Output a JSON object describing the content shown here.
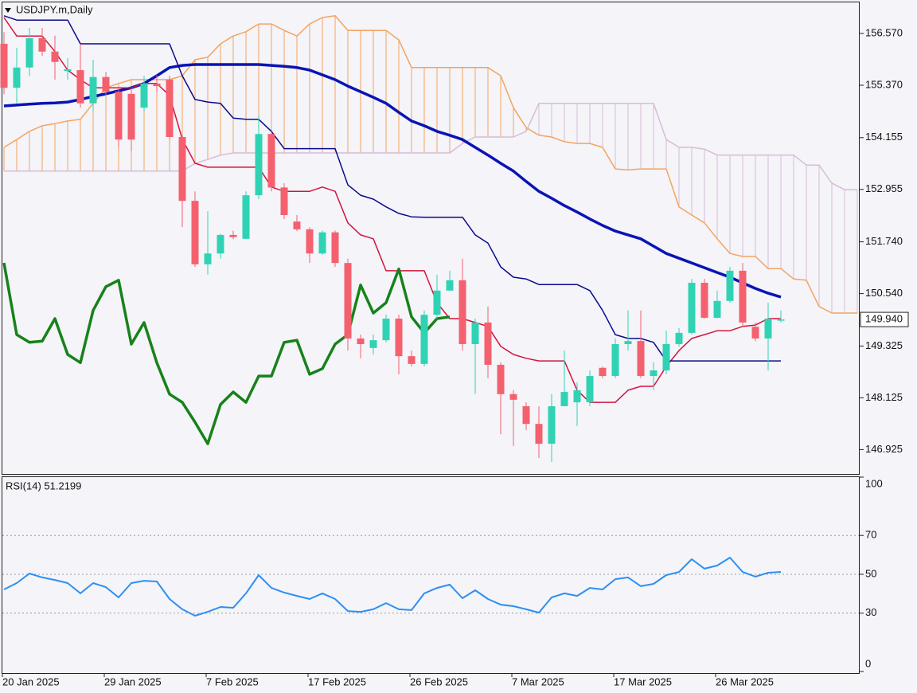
{
  "chart_data": [
    {
      "type": "candlestick",
      "title": "USDJPY.m,Daily",
      "categories": [
        "20 Jan 2025",
        null,
        null,
        null,
        null,
        null,
        null,
        null,
        "29 Jan 2025",
        null,
        null,
        null,
        null,
        null,
        null,
        null,
        "7 Feb 2025",
        null,
        null,
        null,
        null,
        null,
        null,
        null,
        "17 Feb 2025",
        null,
        null,
        null,
        null,
        null,
        null,
        null,
        "26 Feb 2025",
        null,
        null,
        null,
        null,
        null,
        null,
        null,
        "7 Mar 2025",
        null,
        null,
        null,
        null,
        null,
        null,
        null,
        "17 Mar 2025",
        null,
        null,
        null,
        null,
        null,
        null,
        null,
        "26 Mar 2025",
        null,
        null,
        null,
        null,
        null,
        null,
        null,
        null,
        null,
        null,
        null
      ],
      "up_color": "#2fd3b4",
      "down_color": "#f4606e",
      "open": [
        156.33,
        155.31,
        155.78,
        156.46,
        156.15,
        155.7,
        155.72,
        154.95,
        155.56,
        155.22,
        155.17,
        154.85,
        155.41,
        155.5,
        154.17,
        152.69,
        151.22,
        151.47,
        151.9,
        151.81,
        152.82,
        154.24,
        153.0,
        152.21,
        152.03,
        151.47,
        151.96,
        151.25,
        149.5,
        149.28,
        149.46,
        149.96,
        149.09,
        148.91,
        150.05,
        150.61,
        150.85,
        149.37,
        149.87,
        148.89,
        148.21,
        147.93,
        147.52,
        147.06,
        147.93,
        148.02,
        148.02,
        148.82,
        148.63,
        149.37,
        149.44,
        148.63,
        148.76,
        149.37,
        149.63,
        150.79,
        149.98,
        150.37,
        151.07,
        149.77,
        149.5,
        149.92,
        null,
        null,
        null,
        null,
        null,
        null
      ],
      "high": [
        156.6,
        156.24,
        156.7,
        156.7,
        156.52,
        156.0,
        156.33,
        155.96,
        155.68,
        155.31,
        155.31,
        155.59,
        155.6,
        155.59,
        154.2,
        152.91,
        152.45,
        151.93,
        152.0,
        152.91,
        154.67,
        154.3,
        153.1,
        152.36,
        152.08,
        152.0,
        152.0,
        151.35,
        149.59,
        149.59,
        150.05,
        150.05,
        149.22,
        150.15,
        150.98,
        151.07,
        151.35,
        149.96,
        150.24,
        148.95,
        148.3,
        148.02,
        147.93,
        148.21,
        149.22,
        148.48,
        148.76,
        148.85,
        149.5,
        150.15,
        150.15,
        148.95,
        149.68,
        149.74,
        150.88,
        150.88,
        150.61,
        151.16,
        151.25,
        149.87,
        150.33,
        150.15,
        null,
        null,
        null,
        null,
        null,
        null
      ],
      "low": [
        155.16,
        154.95,
        155.59,
        156.05,
        155.5,
        155.5,
        154.85,
        154.76,
        155.13,
        153.93,
        153.84,
        154.76,
        155.2,
        154.11,
        152.08,
        151.16,
        150.98,
        151.35,
        151.8,
        151.81,
        152.73,
        152.91,
        152.27,
        151.99,
        151.25,
        151.44,
        151.16,
        149.22,
        149.04,
        149.13,
        149.41,
        148.67,
        148.85,
        148.85,
        149.96,
        150.61,
        149.22,
        148.21,
        148.58,
        147.28,
        147.01,
        147.38,
        146.73,
        146.64,
        147.93,
        147.47,
        147.93,
        148.58,
        148.58,
        149.22,
        148.58,
        148.3,
        148.67,
        149.31,
        149.59,
        149.96,
        149.96,
        150.33,
        149.77,
        149.44,
        148.76,
        149.87,
        null,
        null,
        null,
        null,
        null,
        null
      ],
      "close": [
        155.31,
        155.78,
        156.46,
        156.15,
        155.91,
        155.74,
        154.95,
        155.56,
        155.22,
        154.11,
        154.11,
        155.41,
        155.35,
        154.17,
        152.69,
        151.22,
        151.47,
        151.9,
        151.85,
        152.82,
        154.24,
        153.0,
        152.36,
        152.03,
        151.47,
        151.96,
        151.25,
        149.5,
        149.37,
        149.46,
        149.96,
        149.09,
        148.91,
        150.05,
        150.61,
        150.85,
        149.37,
        149.87,
        148.89,
        148.21,
        148.08,
        147.52,
        147.06,
        147.93,
        148.26,
        148.3,
        148.63,
        148.63,
        149.37,
        149.44,
        148.63,
        148.76,
        149.37,
        149.63,
        150.79,
        149.98,
        150.37,
        151.07,
        149.87,
        149.5,
        149.96,
        149.94,
        null,
        null,
        null,
        null,
        null,
        null
      ],
      "cloud": {
        "span_a": {
          "color": "#f4a460",
          "values": [
            153.93,
            154.11,
            154.3,
            154.43,
            154.48,
            154.54,
            154.58,
            154.95,
            155.31,
            155.41,
            155.5,
            155.5,
            155.5,
            155.5,
            155.59,
            155.96,
            156.02,
            156.33,
            156.51,
            156.61,
            156.79,
            156.79,
            156.64,
            156.51,
            156.79,
            156.94,
            156.98,
            156.64,
            156.64,
            156.64,
            156.64,
            156.42,
            155.78,
            155.78,
            155.78,
            155.78,
            155.78,
            155.78,
            155.78,
            155.59,
            154.85,
            154.39,
            154.21,
            154.17,
            154.06,
            154.02,
            154.02,
            153.93,
            153.43,
            153.41,
            153.43,
            153.43,
            153.43,
            152.55,
            152.36,
            152.18,
            151.81,
            151.47,
            151.4,
            151.4,
            151.12,
            151.12,
            150.88,
            150.85,
            150.24,
            150.09,
            150.09,
            150.09
          ]
        },
        "span_b": {
          "color": "#d8bcd8",
          "values": [
            153.38,
            153.38,
            153.38,
            153.38,
            153.38,
            153.38,
            153.38,
            153.38,
            153.38,
            153.38,
            153.38,
            153.38,
            153.38,
            153.38,
            153.38,
            153.56,
            153.65,
            153.75,
            153.8,
            153.8,
            153.8,
            153.8,
            153.8,
            153.8,
            153.8,
            153.8,
            153.8,
            153.8,
            153.8,
            153.8,
            153.8,
            153.8,
            153.8,
            153.8,
            153.8,
            153.8,
            154.02,
            154.17,
            154.17,
            154.17,
            154.17,
            154.3,
            154.95,
            154.95,
            154.95,
            154.95,
            154.95,
            154.95,
            154.95,
            154.95,
            154.95,
            154.95,
            154.11,
            153.93,
            153.93,
            153.89,
            153.75,
            153.75,
            153.75,
            153.75,
            153.75,
            153.75,
            153.75,
            153.52,
            153.52,
            153.1,
            152.95,
            152.95
          ]
        }
      },
      "lines": [
        {
          "color": "#0a14b4",
          "bold": true,
          "values": [
            154.89,
            154.91,
            154.93,
            154.95,
            154.96,
            154.98,
            155.04,
            155.11,
            155.17,
            155.24,
            155.31,
            155.41,
            155.59,
            155.78,
            155.83,
            155.85,
            155.85,
            155.85,
            155.85,
            155.85,
            155.85,
            155.83,
            155.81,
            155.78,
            155.72,
            155.61,
            155.5,
            155.35,
            155.22,
            155.09,
            154.95,
            154.74,
            154.54,
            154.43,
            154.3,
            154.21,
            154.11,
            153.93,
            153.75,
            153.56,
            153.38,
            153.14,
            152.91,
            152.75,
            152.58,
            152.43,
            152.27,
            152.12,
            151.99,
            151.9,
            151.81,
            151.64,
            151.47,
            151.36,
            151.25,
            151.14,
            151.03,
            150.92,
            150.79,
            150.66,
            150.55,
            150.46,
            null,
            null,
            null,
            null,
            null,
            null
          ]
        },
        {
          "color": "#d4143c",
          "bold": false,
          "values": [
            156.94,
            156.51,
            156.51,
            156.51,
            156.15,
            155.72,
            155.5,
            155.31,
            155.31,
            155.31,
            155.31,
            155.41,
            155.41,
            155.13,
            154.12,
            153.56,
            153.47,
            153.47,
            153.47,
            153.47,
            153.47,
            153.01,
            152.91,
            152.91,
            152.91,
            153.01,
            152.91,
            152.18,
            151.9,
            151.81,
            151.07,
            151.07,
            151.07,
            151.07,
            150.33,
            149.96,
            149.96,
            149.87,
            149.78,
            149.32,
            149.13,
            149.04,
            148.98,
            148.98,
            148.98,
            148.3,
            148.02,
            148.02,
            148.02,
            148.3,
            148.39,
            148.39,
            148.85,
            149.22,
            149.5,
            149.59,
            149.68,
            149.68,
            149.78,
            149.81,
            149.96,
            149.96,
            null,
            null,
            null,
            null,
            null,
            null
          ]
        },
        {
          "color": "#0a0a8c",
          "bold": false,
          "values": [
            156.98,
            156.88,
            156.88,
            156.88,
            156.88,
            156.88,
            156.33,
            156.33,
            156.33,
            156.33,
            156.33,
            156.33,
            156.33,
            156.33,
            155.59,
            155.04,
            154.98,
            154.95,
            154.61,
            154.58,
            154.58,
            154.3,
            153.9,
            153.9,
            153.9,
            153.9,
            153.9,
            153.06,
            152.82,
            152.73,
            152.55,
            152.4,
            152.32,
            152.31,
            152.31,
            152.31,
            152.31,
            151.9,
            151.71,
            151.16,
            150.92,
            150.88,
            150.75,
            150.75,
            150.75,
            150.75,
            150.61,
            150.15,
            149.59,
            149.5,
            149.5,
            149.41,
            148.98,
            148.98,
            148.98,
            148.98,
            148.98,
            148.98,
            148.98,
            148.98,
            148.98,
            148.98,
            null,
            null,
            null,
            null,
            null,
            null
          ]
        },
        {
          "color": "#17821a",
          "bold": true,
          "values": [
            151.25,
            149.59,
            149.41,
            149.44,
            149.96,
            149.13,
            148.94,
            150.15,
            150.7,
            150.85,
            149.37,
            149.87,
            148.94,
            148.21,
            148.02,
            147.56,
            147.06,
            147.97,
            148.26,
            148.02,
            148.63,
            148.63,
            149.41,
            149.46,
            148.67,
            148.8,
            149.37,
            149.59,
            150.74,
            150.09,
            150.33,
            151.11,
            150.0,
            149.63,
            149.96,
            150.0,
            null,
            null,
            null,
            null,
            null,
            null,
            null,
            null,
            null,
            null,
            null,
            null,
            null,
            null,
            null,
            null,
            null,
            null,
            null,
            null,
            null,
            null,
            null,
            null,
            null,
            null,
            null,
            null,
            null,
            null,
            null,
            null
          ]
        }
      ],
      "ylim": [
        146.36,
        157.29
      ],
      "yticks": [
        {
          "value": 156.57,
          "label": "156.570"
        },
        {
          "value": 155.37,
          "label": "155.370"
        },
        154.155,
        152.955,
        {
          "value": 151.74,
          "label": "151.740"
        },
        {
          "value": 150.54,
          "label": "150.540"
        },
        149.325,
        148.125,
        146.925
      ],
      "last_price": {
        "value": 149.94,
        "label": "149.940"
      }
    },
    {
      "type": "line",
      "title": "RSI(14) 51.2199",
      "color": "#2e8ff0",
      "values": [
        42.2,
        45.5,
        50.4,
        48.4,
        47.1,
        45.5,
        40.2,
        45.5,
        43.4,
        38.1,
        45.5,
        46.7,
        46.3,
        37.3,
        32.0,
        28.7,
        30.7,
        33.2,
        32.8,
        40.2,
        49.6,
        43.0,
        40.6,
        38.9,
        37.3,
        40.2,
        37.3,
        31.1,
        30.7,
        32.0,
        35.2,
        32.0,
        31.6,
        40.2,
        43.0,
        44.7,
        37.7,
        41.8,
        37.3,
        34.4,
        33.6,
        32.0,
        30.3,
        38.1,
        40.2,
        38.9,
        43.0,
        42.2,
        47.5,
        48.4,
        43.9,
        45.1,
        49.6,
        51.2,
        57.8,
        52.9,
        54.5,
        58.6,
        51.2,
        48.8,
        50.8,
        51.2199,
        null,
        null,
        null,
        null,
        null,
        null
      ],
      "ylim": [
        0,
        100
      ],
      "yticks": [
        0,
        30,
        50,
        70,
        100
      ],
      "levels": [
        30,
        50,
        70
      ]
    }
  ]
}
